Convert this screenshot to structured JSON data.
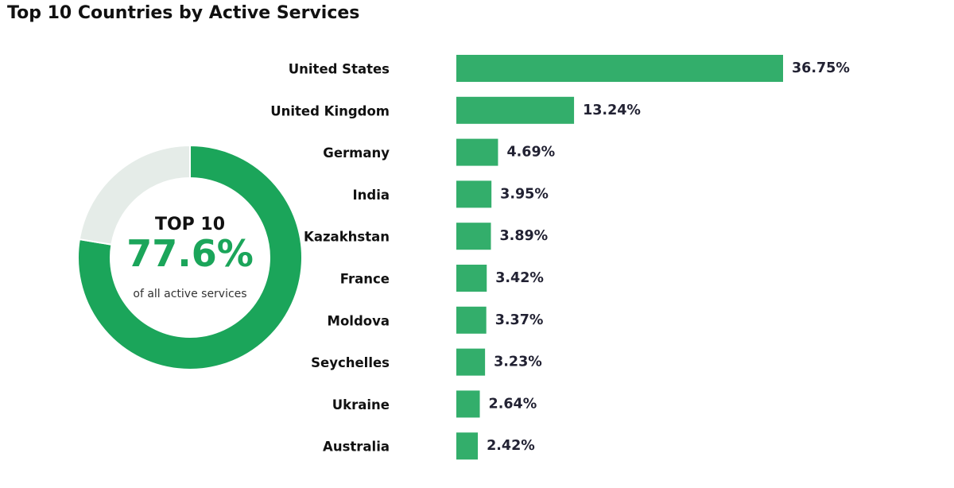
{
  "title": "Top 10 Countries by Active Services",
  "colors": {
    "bar": "#33AE6B",
    "donut_fill": "#1BA55A",
    "donut_rest": "#E5ECE8",
    "accent_text": "#1BA55A"
  },
  "donut": {
    "heading": "TOP 10",
    "value_label": "77.6%",
    "value": 77.6,
    "caption": "of all active services"
  },
  "chart_data": [
    {
      "type": "bar",
      "orientation": "horizontal",
      "title": "Top 10 Countries by Active Services",
      "categories": [
        "United States",
        "United Kingdom",
        "Germany",
        "India",
        "Kazakhstan",
        "France",
        "Moldova",
        "Seychelles",
        "Ukraine",
        "Australia"
      ],
      "values": [
        36.75,
        13.24,
        4.69,
        3.95,
        3.89,
        3.42,
        3.37,
        3.23,
        2.64,
        2.42
      ],
      "value_labels": [
        "36.75%",
        "13.24%",
        "4.69%",
        "3.95%",
        "3.89%",
        "3.42%",
        "3.37%",
        "3.23%",
        "2.64%",
        "2.42%"
      ],
      "xlim": [
        0,
        36.75
      ],
      "grid": false,
      "axes_visible": false
    },
    {
      "type": "pie",
      "style": "donut",
      "slices": [
        {
          "label": "TOP 10",
          "value": 77.6
        },
        {
          "label": "",
          "value": 22.4
        }
      ]
    }
  ]
}
